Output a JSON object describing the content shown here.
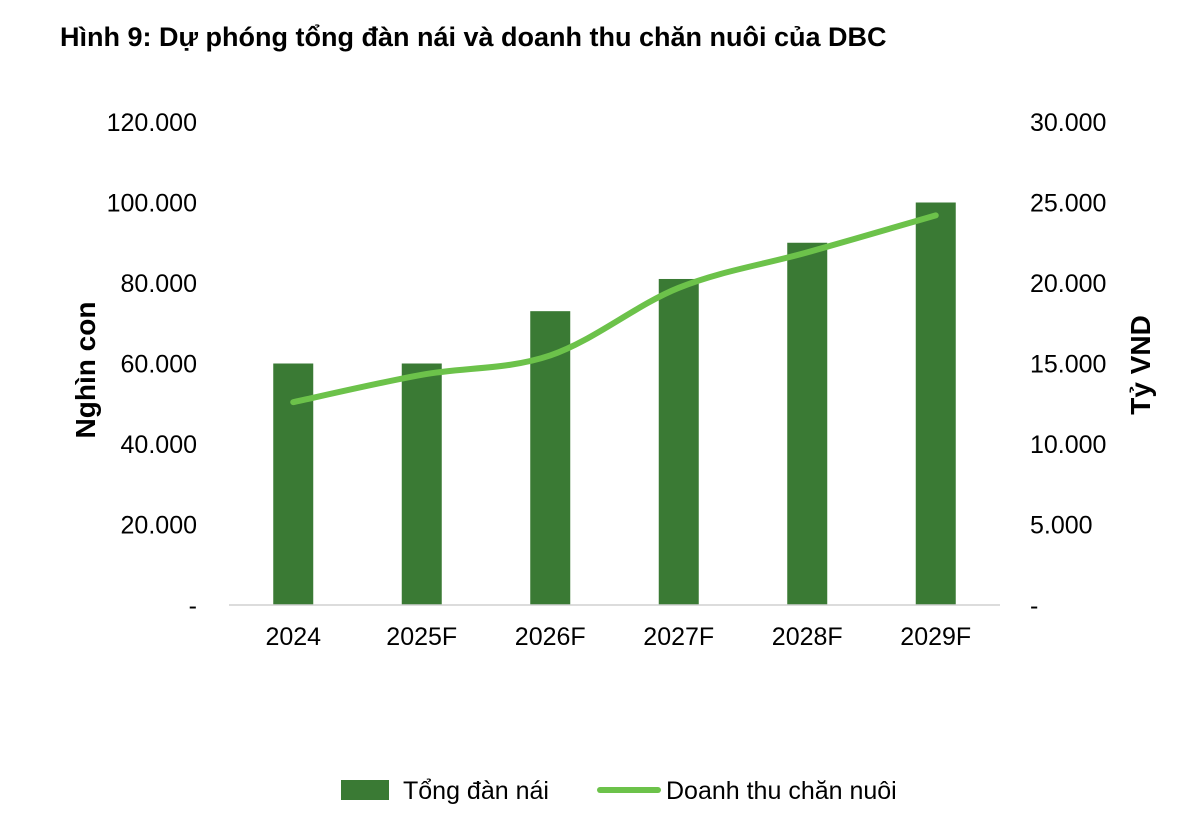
{
  "chart_data": {
    "type": "bar",
    "title": "Hình 9: Dự phóng tổng đàn nái và doanh thu chăn nuôi của DBC",
    "categories": [
      "2024",
      "2025F",
      "2026F",
      "2027F",
      "2028F",
      "2029F"
    ],
    "series": [
      {
        "name": "Tổng đàn nái",
        "type": "bar",
        "axis": "left",
        "color": "#3a7a34",
        "values": [
          60000,
          60000,
          73000,
          81000,
          90000,
          100000
        ]
      },
      {
        "name": "Doanh thu chăn nuôi",
        "type": "line",
        "axis": "right",
        "color": "#6cc24a",
        "values": [
          12600,
          14300,
          15500,
          19700,
          21900,
          24200
        ]
      }
    ],
    "y_left": {
      "label": "Nghìn con",
      "ylim": [
        0,
        120000
      ],
      "ticks": [
        "-",
        "20.000",
        "40.000",
        "60.000",
        "80.000",
        "100.000",
        "120.000"
      ]
    },
    "y_right": {
      "label": "Tỷ VND",
      "ylim": [
        0,
        30000
      ],
      "ticks": [
        "-",
        "5.000",
        "10.000",
        "15.000",
        "20.000",
        "25.000",
        "30.000"
      ]
    },
    "grid": false,
    "legend": "bottom"
  }
}
